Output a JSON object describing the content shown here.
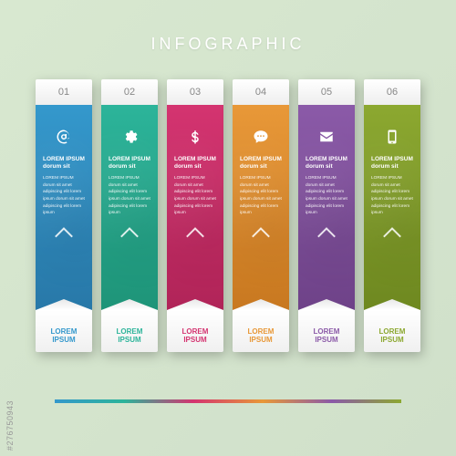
{
  "title": "INFOGRAPHIC",
  "watermark": "#276750943",
  "background_color": "#d8e8d0",
  "gradient_bar_colors": [
    "#3498cc",
    "#2cb49a",
    "#d43470",
    "#e89838",
    "#8b5aa8",
    "#8ca830"
  ],
  "columns": [
    {
      "num": "01",
      "color": "#3498cc",
      "color_dark": "#2878a8",
      "icon": "at",
      "body_title": "LOREM IPSUM dorum sit",
      "body_text": "LOREM IPSUM dorum sit amet adipiscing elit lorem ipsum dorum sit amet adipiscing elit lorem ipsum",
      "foot1": "LOREM",
      "foot2": "IPSUM",
      "foot_color": "#3498cc"
    },
    {
      "num": "02",
      "color": "#2cb49a",
      "color_dark": "#1e9478",
      "icon": "gear",
      "body_title": "LOREM IPSUM dorum sit",
      "body_text": "LOREM IPSUM dorum sit amet adipiscing elit lorem ipsum dorum sit amet adipiscing elit lorem ipsum",
      "foot1": "LOREM",
      "foot2": "IPSUM",
      "foot_color": "#2cb49a"
    },
    {
      "num": "03",
      "color": "#d43470",
      "color_dark": "#b02458",
      "icon": "dollar",
      "body_title": "LOREM IPSUM dorum sit",
      "body_text": "LOREM IPSUM dorum sit amet adipiscing elit lorem ipsum dorum sit amet adipiscing elit lorem ipsum",
      "foot1": "LOREM",
      "foot2": "IPSUM",
      "foot_color": "#d43470"
    },
    {
      "num": "04",
      "color": "#e89838",
      "color_dark": "#c87820",
      "icon": "chat",
      "body_title": "LOREM IPSUM dorum sit",
      "body_text": "LOREM IPSUM dorum sit amet adipiscing elit lorem ipsum dorum sit amet adipiscing elit lorem ipsum",
      "foot1": "LOREM",
      "foot2": "IPSUM",
      "foot_color": "#e89838"
    },
    {
      "num": "05",
      "color": "#8b5aa8",
      "color_dark": "#6e4288",
      "icon": "mail",
      "body_title": "LOREM IPSUM dorum sit",
      "body_text": "LOREM IPSUM dorum sit amet adipiscing elit lorem ipsum dorum sit amet adipiscing elit lorem ipsum",
      "foot1": "LOREM",
      "foot2": "IPSUM",
      "foot_color": "#8b5aa8"
    },
    {
      "num": "06",
      "color": "#8ca830",
      "color_dark": "#6e8820",
      "icon": "phone",
      "body_title": "LOREM IPSUM dorum sit",
      "body_text": "LOREM IPSUM dorum sit amet adipiscing elit lorem ipsum dorum sit amet adipiscing elit lorem ipsum",
      "foot1": "LOREM",
      "foot2": "IPSUM",
      "foot_color": "#8ca830"
    }
  ]
}
